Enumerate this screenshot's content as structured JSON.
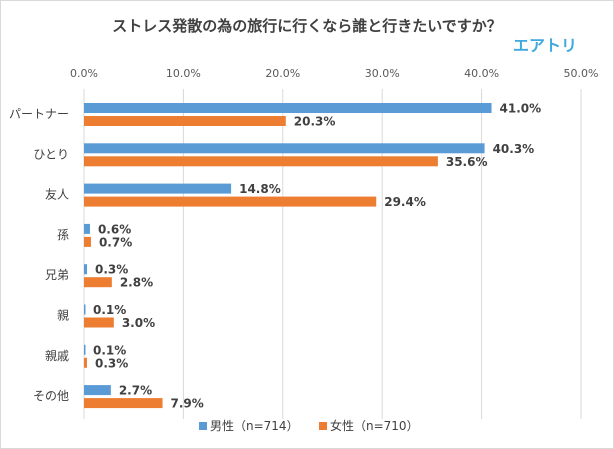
{
  "chart_data": {
    "type": "bar",
    "orientation": "horizontal",
    "title": "ストレス発散の為の旅行に行くなら誰と行きたいですか？",
    "logo": "エアトリ",
    "categories": [
      "パートナー",
      "ひとり",
      "友人",
      "孫",
      "兄弟",
      "親",
      "親戚",
      "その他"
    ],
    "series": [
      {
        "name": "男性（n=714）",
        "color": "#5b9bd5",
        "values": [
          41.0,
          40.3,
          14.8,
          0.6,
          0.3,
          0.1,
          0.1,
          2.7
        ]
      },
      {
        "name": "女性（n=710）",
        "color": "#ed7d31",
        "values": [
          20.3,
          35.6,
          29.4,
          0.7,
          2.8,
          3.0,
          0.3,
          7.9
        ]
      }
    ],
    "xlim": [
      0,
      50
    ],
    "xticks": [
      "0.0%",
      "10.0%",
      "20.0%",
      "30.0%",
      "40.0%",
      "50.0%"
    ],
    "axis_position": "top",
    "grid": true,
    "legend_position": "bottom",
    "logo_color": "#3fa9e0"
  }
}
